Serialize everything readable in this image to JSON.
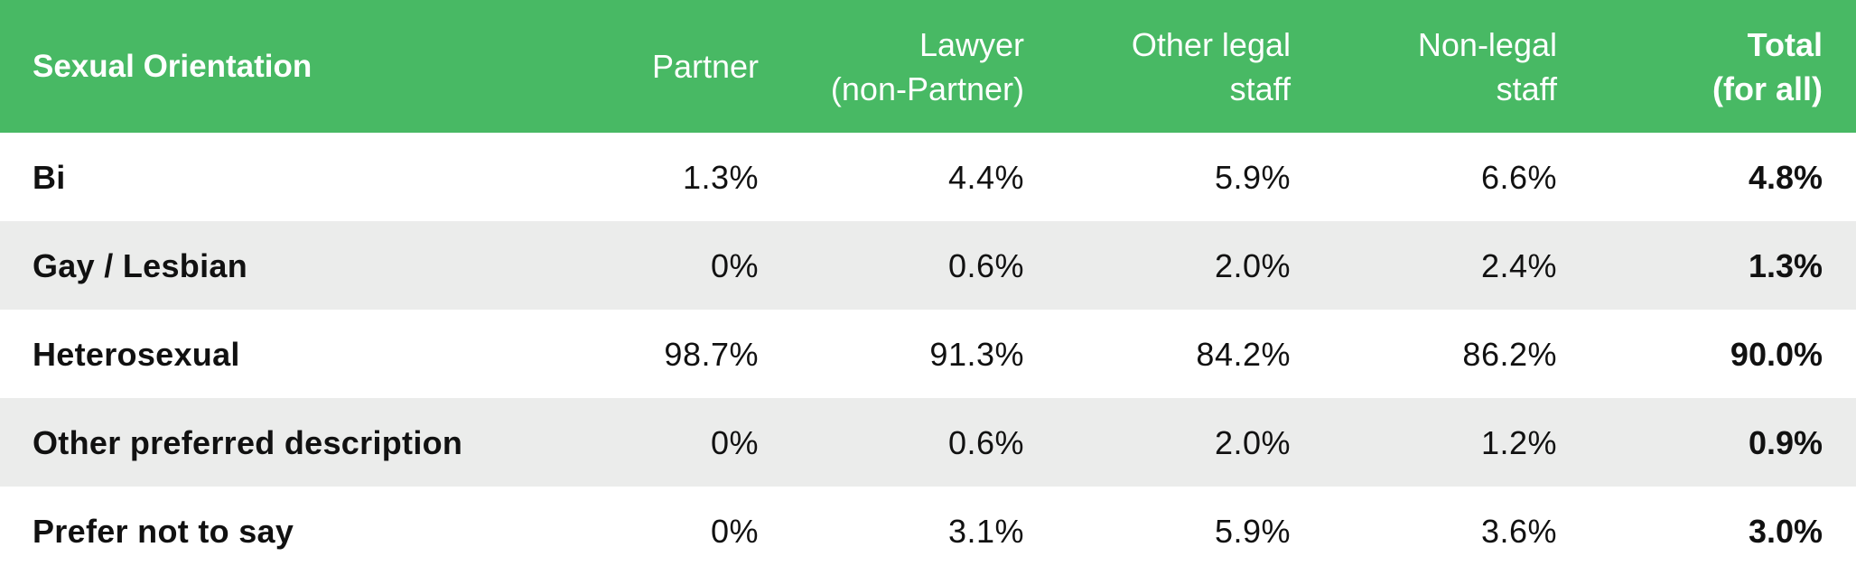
{
  "header": {
    "col_label": "Sexual Orientation",
    "col_partner": [
      "Partner"
    ],
    "col_lawyer": [
      "Lawyer",
      "(non-Partner)"
    ],
    "col_other_legal": [
      "Other legal",
      "staff"
    ],
    "col_non_legal": [
      "Non-legal",
      "staff"
    ],
    "col_total": [
      "Total",
      "(for all)"
    ]
  },
  "rows": [
    {
      "label": "Bi",
      "partner": "1.3%",
      "lawyer": "4.4%",
      "other_legal": "5.9%",
      "non_legal": "6.6%",
      "total": "4.8%"
    },
    {
      "label": "Gay / Lesbian",
      "partner": "0%",
      "lawyer": "0.6%",
      "other_legal": "2.0%",
      "non_legal": "2.4%",
      "total": "1.3%"
    },
    {
      "label": "Heterosexual",
      "partner": "98.7%",
      "lawyer": "91.3%",
      "other_legal": "84.2%",
      "non_legal": "86.2%",
      "total": "90.0%"
    },
    {
      "label": "Other preferred description",
      "partner": "0%",
      "lawyer": "0.6%",
      "other_legal": "2.0%",
      "non_legal": "1.2%",
      "total": "0.9%"
    },
    {
      "label": "Prefer not to say",
      "partner": "0%",
      "lawyer": "3.1%",
      "other_legal": "5.9%",
      "non_legal": "3.6%",
      "total": "3.0%"
    }
  ],
  "colors": {
    "header_bg": "#48b964",
    "stripe_bg": "#ebeceb",
    "text": "#111111"
  }
}
